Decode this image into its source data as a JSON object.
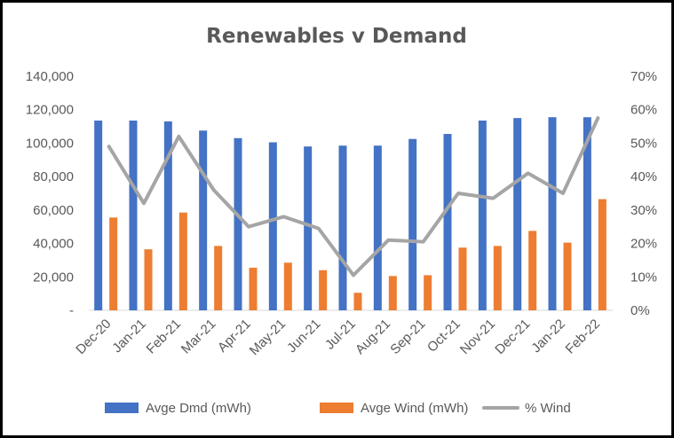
{
  "chart_data": {
    "type": "bar",
    "title": "Renewables v Demand",
    "categories": [
      "Dec-20",
      "Jan-21",
      "Feb-21",
      "Mar-21",
      "Apr-21",
      "May-21",
      "Jun-21",
      "Jul-21",
      "Aug-21",
      "Sep-21",
      "Oct-21",
      "Nov-21",
      "Dec-21",
      "Jan-22",
      "Feb-22"
    ],
    "series": [
      {
        "name": "Avge Dmd (mWh)",
        "type": "bar",
        "axis": "left",
        "color": "#4472C4",
        "values": [
          113500,
          113500,
          113000,
          107500,
          103000,
          100500,
          98000,
          98500,
          98500,
          102500,
          105500,
          113500,
          115000,
          115500,
          115500
        ]
      },
      {
        "name": "Avge Wind (mWh)",
        "type": "bar",
        "axis": "left",
        "color": "#ED7D31",
        "values": [
          55500,
          36500,
          58500,
          38500,
          25500,
          28500,
          24000,
          10500,
          20500,
          21000,
          37500,
          38500,
          47500,
          40500,
          66500
        ]
      },
      {
        "name": "% Wind",
        "type": "line",
        "axis": "right",
        "color": "#A5A5A5",
        "values": [
          0.49,
          0.32,
          0.52,
          0.36,
          0.25,
          0.28,
          0.245,
          0.105,
          0.21,
          0.205,
          0.35,
          0.335,
          0.41,
          0.35,
          0.575
        ]
      }
    ],
    "yaxis_left": {
      "min": 0,
      "max": 140000,
      "step": 20000,
      "tick_labels": [
        "-",
        "20,000",
        "40,000",
        "60,000",
        "80,000",
        "100,000",
        "120,000",
        "140,000"
      ]
    },
    "yaxis_right": {
      "min": 0,
      "max": 0.7,
      "step": 0.1,
      "tick_labels": [
        "0%",
        "10%",
        "20%",
        "30%",
        "40%",
        "50%",
        "60%",
        "70%"
      ]
    },
    "grid": false,
    "legend_position": "bottom"
  }
}
